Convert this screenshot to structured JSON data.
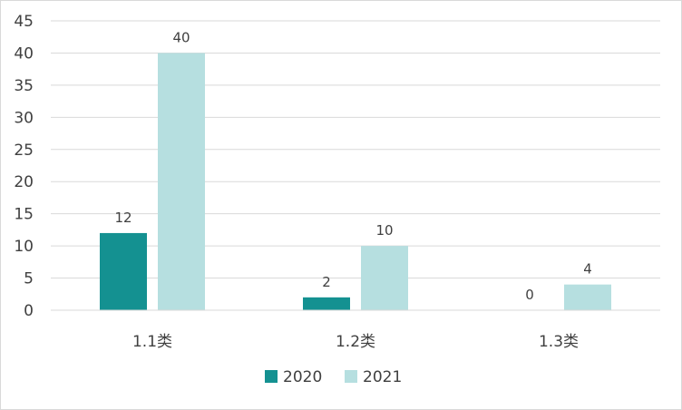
{
  "chart_data": {
    "type": "bar",
    "categories": [
      "1.1类",
      "1.2类",
      "1.3类"
    ],
    "series": [
      {
        "name": "2020",
        "values": [
          12,
          2,
          0
        ],
        "color": "#149191"
      },
      {
        "name": "2021",
        "values": [
          40,
          10,
          4
        ],
        "color": "#b6dfe0"
      }
    ],
    "ylim": [
      0,
      45
    ],
    "yticks": [
      0,
      5,
      10,
      15,
      20,
      25,
      30,
      35,
      40,
      45
    ],
    "grid": true,
    "legend": "bottom",
    "data_labels": true,
    "title": "",
    "xlabel": "",
    "ylabel": ""
  }
}
